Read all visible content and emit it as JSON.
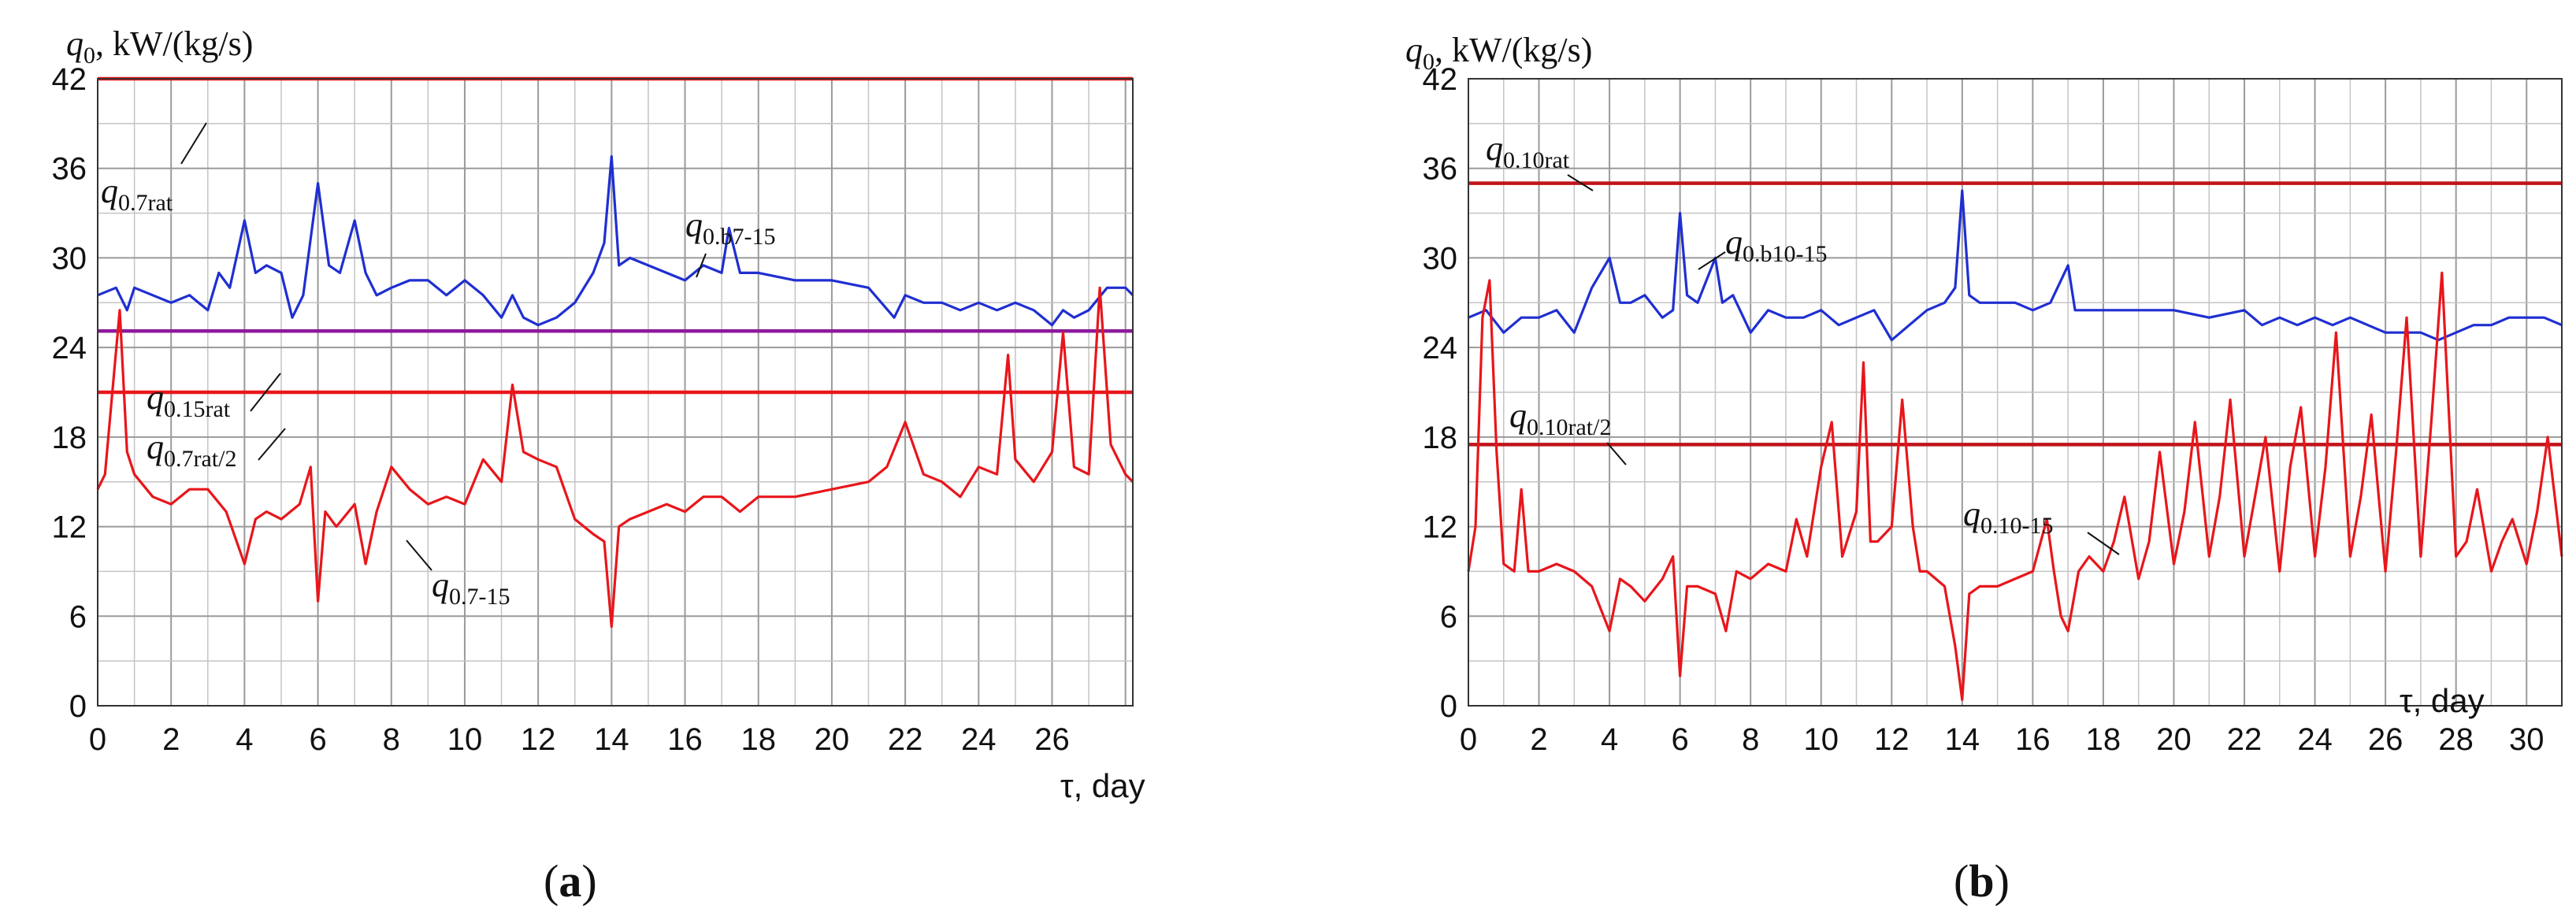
{
  "chart_data": [
    {
      "type": "line",
      "panel_label": "a",
      "ylabel": "q0, kW/(kg/s)",
      "ylabel_base": "q",
      "ylabel_sub": "0",
      "ylabel_units": ", kW/(kg/s)",
      "xlabel": "τ, day",
      "xlabel_position": "bottom-right",
      "xlim": [
        0,
        28.2
      ],
      "ylim": [
        0,
        42
      ],
      "y_ticks": [
        0,
        6,
        12,
        18,
        24,
        30,
        36,
        42
      ],
      "x_ticks": [
        0,
        2,
        4,
        6,
        8,
        10,
        12,
        14,
        16,
        18,
        20,
        22,
        24,
        26
      ],
      "grid": true,
      "hlines": [
        {
          "name": "q0.7rat",
          "y": 42,
          "color": "#e8161b"
        },
        {
          "name": "q0.15rat",
          "y": 25.1,
          "color": "#8b1a9c"
        },
        {
          "name": "q0.7rat/2",
          "y": 21,
          "color": "#e8161b"
        }
      ],
      "series": [
        {
          "name": "q0.b7-15",
          "color": "#1f2fd1",
          "x": [
            0,
            0.5,
            0.8,
            1,
            1.5,
            2,
            2.5,
            3,
            3.3,
            3.6,
            4,
            4.3,
            4.6,
            5,
            5.3,
            5.6,
            6,
            6.3,
            6.6,
            7,
            7.3,
            7.6,
            8,
            8.5,
            9,
            9.5,
            10,
            10.5,
            11,
            11.3,
            11.6,
            12,
            12.5,
            13,
            13.5,
            13.8,
            14,
            14.2,
            14.5,
            15,
            15.5,
            16,
            16.5,
            17,
            17.2,
            17.5,
            18,
            19,
            20,
            21,
            21.7,
            22,
            22.5,
            23,
            23.5,
            24,
            24.5,
            25,
            25.5,
            26,
            26.3,
            26.6,
            27,
            27.5,
            28,
            28.2
          ],
          "values": [
            27.5,
            28,
            26.5,
            28,
            27.5,
            27,
            27.5,
            26.5,
            29,
            28,
            32.5,
            29,
            29.5,
            29,
            26,
            27.5,
            35,
            29.5,
            29,
            32.5,
            29,
            27.5,
            28,
            28.5,
            28.5,
            27.5,
            28.5,
            27.5,
            26,
            27.5,
            26,
            25.5,
            26,
            27,
            29,
            31,
            36.8,
            29.5,
            30,
            29.5,
            29,
            28.5,
            29.5,
            29,
            32,
            29,
            29,
            28.5,
            28.5,
            28,
            26,
            27.5,
            27,
            27,
            26.5,
            27,
            26.5,
            27,
            26.5,
            25.5,
            26.5,
            26,
            26.5,
            28,
            28,
            27.5
          ]
        },
        {
          "name": "q0.7-15",
          "color": "#e8161b",
          "x": [
            0,
            0.2,
            0.4,
            0.6,
            0.8,
            1,
            1.5,
            2,
            2.5,
            3,
            3.5,
            4,
            4.3,
            4.6,
            5,
            5.5,
            5.8,
            6,
            6.2,
            6.5,
            7,
            7.3,
            7.6,
            8,
            8.5,
            9,
            9.5,
            10,
            10.5,
            11,
            11.3,
            11.6,
            12,
            12.5,
            13,
            13.5,
            13.8,
            14,
            14.2,
            14.5,
            15,
            15.5,
            16,
            16.5,
            17,
            17.5,
            18,
            19,
            20,
            21,
            21.5,
            22,
            22.5,
            23,
            23.5,
            24,
            24.5,
            24.8,
            25,
            25.5,
            26,
            26.3,
            26.6,
            27,
            27.3,
            27.6,
            28,
            28.2
          ],
          "values": [
            14.5,
            15.5,
            21,
            26.5,
            17,
            15.5,
            14,
            13.5,
            14.5,
            14.5,
            13,
            9.5,
            12.5,
            13,
            12.5,
            13.5,
            16,
            7,
            13,
            12,
            13.5,
            9.5,
            13,
            16,
            14.5,
            13.5,
            14,
            13.5,
            16.5,
            15,
            21.5,
            17,
            16.5,
            16,
            12.5,
            11.5,
            11,
            5.3,
            12,
            12.5,
            13,
            13.5,
            13,
            14,
            14,
            13,
            14,
            14,
            14.5,
            15,
            16,
            19,
            15.5,
            15,
            14,
            16,
            15.5,
            23.5,
            16.5,
            15,
            17,
            25,
            16,
            15.5,
            28,
            17.5,
            15.5,
            15
          ]
        }
      ],
      "annotations": [
        {
          "base": "q",
          "sub": "0.7rat",
          "text": "q0.7rat"
        },
        {
          "base": "q",
          "sub": "0.b7-15",
          "text": "q0.b7-15"
        },
        {
          "base": "q",
          "sub": "0.15rat",
          "text": "q0.15rat"
        },
        {
          "base": "q",
          "sub": "0.7rat/2",
          "text": "q0.7rat/2"
        },
        {
          "base": "q",
          "sub": "0.7-15",
          "text": "q0.7-15"
        }
      ]
    },
    {
      "type": "line",
      "panel_label": "b",
      "ylabel": "q0, kW/(kg/s)",
      "ylabel_base": "q",
      "ylabel_sub": "0",
      "ylabel_units": ", kW/(kg/s)",
      "xlabel": "τ, day",
      "xlabel_position": "bottom-right",
      "xlim": [
        0,
        31
      ],
      "ylim": [
        0,
        42
      ],
      "y_ticks": [
        0,
        6,
        12,
        18,
        24,
        30,
        36,
        42
      ],
      "x_ticks": [
        0,
        2,
        4,
        6,
        8,
        10,
        12,
        14,
        16,
        18,
        20,
        22,
        24,
        26,
        28,
        30
      ],
      "grid": true,
      "hlines": [
        {
          "name": "q0.10rat",
          "y": 35,
          "color": "#c0141a"
        },
        {
          "name": "q0.10rat/2",
          "y": 17.5,
          "color": "#c0141a"
        }
      ],
      "series": [
        {
          "name": "q0.b10-15",
          "color": "#1f2fd1",
          "x": [
            0,
            0.5,
            1,
            1.5,
            2,
            2.5,
            3,
            3.5,
            4,
            4.3,
            4.6,
            5,
            5.5,
            5.8,
            6,
            6.2,
            6.5,
            7,
            7.2,
            7.5,
            8,
            8.5,
            9,
            9.5,
            10,
            10.5,
            11,
            11.5,
            12,
            12.5,
            13,
            13.5,
            13.8,
            14,
            14.2,
            14.5,
            15,
            15.5,
            16,
            16.5,
            17,
            17.2,
            17.5,
            18,
            19,
            20,
            21,
            22,
            22.5,
            23,
            23.5,
            24,
            24.5,
            25,
            25.5,
            26,
            26.5,
            27,
            27.5,
            28,
            28.5,
            29,
            29.5,
            30,
            30.5,
            31
          ],
          "values": [
            26,
            26.5,
            25,
            26,
            26,
            26.5,
            25,
            28,
            30,
            27,
            27,
            27.5,
            26,
            26.5,
            33,
            27.5,
            27,
            30,
            27,
            27.5,
            25,
            26.5,
            26,
            26,
            26.5,
            25.5,
            26,
            26.5,
            24.5,
            25.5,
            26.5,
            27,
            28,
            34.5,
            27.5,
            27,
            27,
            27,
            26.5,
            27,
            29.5,
            26.5,
            26.5,
            26.5,
            26.5,
            26.5,
            26,
            26.5,
            25.5,
            26,
            25.5,
            26,
            25.5,
            26,
            25.5,
            25,
            25,
            25,
            24.5,
            25,
            25.5,
            25.5,
            26,
            26,
            26,
            25.5
          ]
        },
        {
          "name": "q0.10-15",
          "color": "#e8161b",
          "x": [
            0,
            0.2,
            0.4,
            0.6,
            0.8,
            1,
            1.3,
            1.5,
            1.7,
            2,
            2.5,
            3,
            3.5,
            4,
            4.3,
            4.6,
            5,
            5.5,
            5.8,
            6,
            6.2,
            6.5,
            7,
            7.3,
            7.6,
            8,
            8.5,
            9,
            9.3,
            9.6,
            10,
            10.3,
            10.6,
            11,
            11.2,
            11.4,
            11.6,
            12,
            12.3,
            12.6,
            12.8,
            13,
            13.5,
            13.8,
            14,
            14.2,
            14.5,
            15,
            15.5,
            16,
            16.4,
            16.6,
            16.8,
            17,
            17.3,
            17.6,
            18,
            18.3,
            18.6,
            19,
            19.3,
            19.6,
            20,
            20.3,
            20.6,
            21,
            21.3,
            21.6,
            22,
            22.3,
            22.6,
            23,
            23.3,
            23.6,
            24,
            24.3,
            24.6,
            25,
            25.3,
            25.6,
            26,
            26.3,
            26.6,
            27,
            27.3,
            27.6,
            28,
            28.3,
            28.6,
            29,
            29.3,
            29.6,
            30,
            30.3,
            30.6,
            31
          ],
          "values": [
            9,
            12,
            26,
            28.5,
            17,
            9.5,
            9,
            14.5,
            9,
            9,
            9.5,
            9,
            8,
            5,
            8.5,
            8,
            7,
            8.5,
            10,
            2,
            8,
            8,
            7.5,
            5,
            9,
            8.5,
            9.5,
            9,
            12.5,
            10,
            16,
            19,
            10,
            13,
            23,
            11,
            11,
            12,
            20.5,
            12,
            9,
            9,
            8,
            4,
            0.4,
            7.5,
            8,
            8,
            8.5,
            9,
            12.5,
            9,
            6,
            5,
            9,
            10,
            9,
            11,
            14,
            8.5,
            11,
            17,
            9.5,
            13,
            19,
            10,
            14,
            20.5,
            10,
            14,
            18,
            9,
            16,
            20,
            10,
            16,
            25,
            10,
            14,
            19.5,
            9,
            17,
            26,
            10,
            19,
            29,
            10,
            11,
            14.5,
            9,
            11,
            12.5,
            9.5,
            13,
            18,
            10
          ]
        }
      ],
      "annotations": [
        {
          "base": "q",
          "sub": "0.10rat",
          "text": "q0.10rat"
        },
        {
          "base": "q",
          "sub": "0.b10-15",
          "text": "q0.b10-15"
        },
        {
          "base": "q",
          "sub": "0.10rat/2",
          "text": "q0.10rat/2"
        },
        {
          "base": "q",
          "sub": "0.10-15",
          "text": "q0.10-15"
        }
      ]
    }
  ]
}
